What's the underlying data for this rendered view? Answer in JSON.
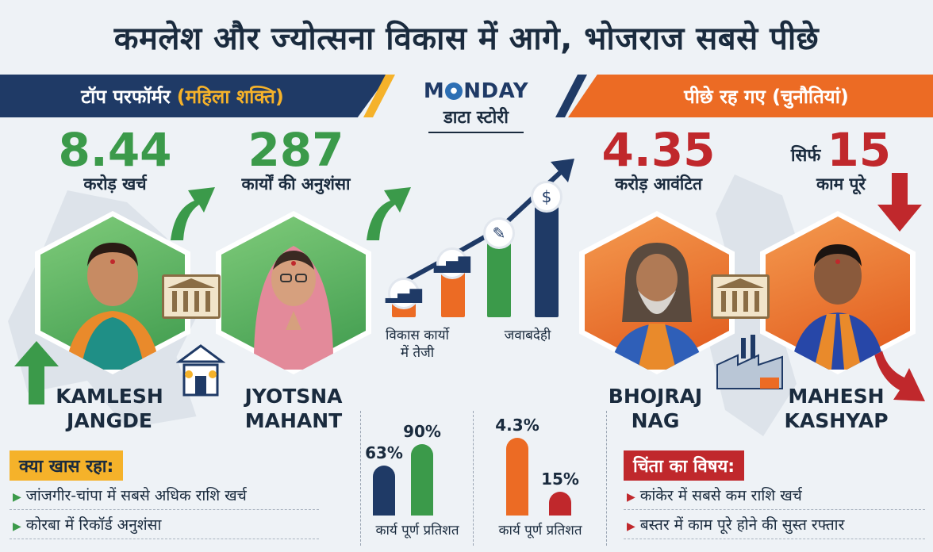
{
  "headline": "कमलेश और ज्योत्सना विकास में आगे, भोजराज सबसे पीछे",
  "left_banner": {
    "text": "टॉप परफॉर्मर",
    "accent": "(महिला शक्ति)"
  },
  "right_banner": {
    "text": "पीछे रह गए (चुनौतियां)"
  },
  "logo": {
    "brand_pre": "M",
    "brand_post": "NDAY",
    "brand_o": "●",
    "sub": "डाटा स्टोरी"
  },
  "kamlesh": {
    "stat": "8.44",
    "stat_label": "करोड़ खर्च",
    "name_line1": "KAMLESH",
    "name_line2": "JANGDE"
  },
  "jyotsna": {
    "stat": "287",
    "stat_label": "कार्यों की अनुशंसा",
    "name_line1": "JYOTSNA",
    "name_line2": "MAHANT"
  },
  "bhojraj": {
    "stat": "4.35",
    "stat_label": "करोड़ आवंटित",
    "name_line1": "BHOJRAJ",
    "name_line2": "NAG"
  },
  "mahesh": {
    "stat_prefix": "सिर्फ",
    "stat": "15",
    "stat_label": "काम पूरे",
    "name_line1": "MAHESH",
    "name_line2": "KASHYAP"
  },
  "growth": {
    "label_left_1": "विकास कार्यो",
    "label_left_2": "में तेजी",
    "label_right": "जवाबदेही"
  },
  "highlights": {
    "title": "क्या खास रहा:",
    "items": [
      "जांजगीर-चांपा में सबसे अधिक राशि खर्च",
      "कोरबा में रिकॉर्ड अनुशंसा"
    ]
  },
  "concerns": {
    "title": "चिंता का विषय:",
    "items": [
      "कांकेर में सबसे कम राशि खर्च",
      "बस्तर में काम पूरे होने की सुस्त रफ्तार"
    ]
  },
  "chart_data": [
    {
      "type": "bar",
      "categories": [
        "",
        ""
      ],
      "values": [
        63,
        90
      ],
      "value_labels": [
        "63%",
        "90%"
      ],
      "colors": [
        "#1f3a66",
        "#3b9a4a"
      ],
      "xlabel": "कार्य पूर्ण प्रतिशत",
      "ylim": [
        0,
        100
      ]
    },
    {
      "type": "bar",
      "categories": [
        "",
        ""
      ],
      "values": [
        4.3,
        15
      ],
      "value_labels": [
        "4.3%",
        "15%"
      ],
      "colors": [
        "#ec6b24",
        "#c0282c"
      ],
      "xlabel": "कार्य पूर्ण प्रतिशत"
    }
  ],
  "colors": {
    "navy": "#1f3a66",
    "green": "#3b9a4a",
    "orange": "#ec6b24",
    "red": "#c0282c",
    "gold": "#f5b22a"
  }
}
